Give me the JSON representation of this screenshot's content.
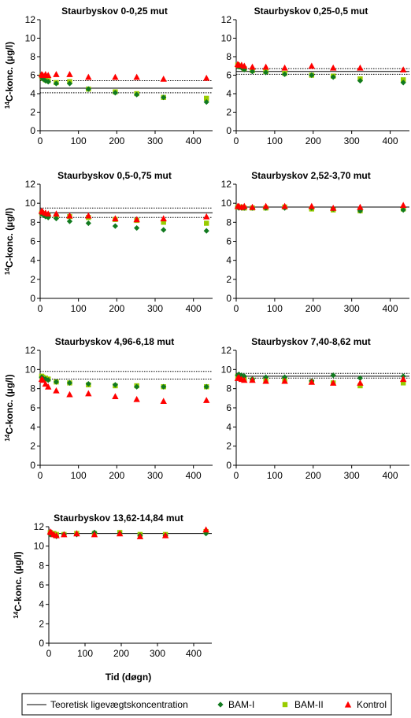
{
  "figure": {
    "x_axis_label": "Tid (døgn)",
    "y_axis_label_sup": "14",
    "y_axis_label": "C-konc. (µg/l)"
  },
  "legend": {
    "items": [
      {
        "label": "Teoretisk ligevægtskoncentration",
        "marker": "line",
        "color": "#000000"
      },
      {
        "label": "BAM-I",
        "marker": "diamond",
        "color": "#117a1f"
      },
      {
        "label": "BAM-II",
        "marker": "square",
        "color": "#99cc00"
      },
      {
        "label": "Kontrol",
        "marker": "triangle",
        "color": "#ff0000"
      }
    ]
  },
  "chart_data": [
    {
      "type": "scatter",
      "title": "Staurbyskov 0-0,25 mut",
      "xlim": [
        0,
        450
      ],
      "ylim": [
        0,
        12
      ],
      "xticks": [
        0,
        100,
        200,
        300,
        400
      ],
      "yticks": [
        0,
        2,
        4,
        6,
        8,
        10,
        12
      ],
      "ref_solid": [
        4.6
      ],
      "ref_dotted": [
        5.4,
        4.1
      ],
      "series": [
        {
          "name": "BAM-I",
          "x": [
            4,
            7,
            14,
            21,
            42,
            77,
            126,
            196,
            252,
            322,
            434
          ],
          "y": [
            5.8,
            5.6,
            5.4,
            5.3,
            5.1,
            5.1,
            4.5,
            4.1,
            3.9,
            3.6,
            3.1
          ]
        },
        {
          "name": "BAM-II",
          "x": [
            4,
            7,
            14,
            21,
            42,
            77,
            126,
            196,
            252,
            322,
            434
          ],
          "y": [
            5.9,
            5.7,
            5.5,
            5.4,
            5.2,
            5.3,
            4.5,
            4.2,
            4.0,
            3.6,
            3.5
          ]
        },
        {
          "name": "Kontrol",
          "x": [
            4,
            7,
            14,
            21,
            42,
            77,
            126,
            196,
            252,
            322,
            434
          ],
          "y": [
            6.1,
            6.0,
            6.1,
            6.0,
            6.1,
            6.1,
            5.8,
            5.8,
            5.8,
            5.6,
            5.7
          ]
        }
      ]
    },
    {
      "type": "scatter",
      "title": "Staurbyskov 0,25-0,5 mut",
      "xlim": [
        0,
        450
      ],
      "ylim": [
        0,
        12
      ],
      "xticks": [
        0,
        100,
        200,
        300,
        400
      ],
      "yticks": [
        0,
        2,
        4,
        6,
        8,
        10,
        12
      ],
      "ref_solid": [
        6.4
      ],
      "ref_dotted": [
        6.7,
        6.1
      ],
      "series": [
        {
          "name": "BAM-I",
          "x": [
            4,
            7,
            14,
            21,
            42,
            77,
            126,
            196,
            252,
            322,
            434
          ],
          "y": [
            7.0,
            6.9,
            6.8,
            6.6,
            6.4,
            6.3,
            6.1,
            6.0,
            5.8,
            5.4,
            5.2
          ]
        },
        {
          "name": "BAM-II",
          "x": [
            4,
            7,
            14,
            21,
            42,
            77,
            126,
            196,
            252,
            322,
            434
          ],
          "y": [
            7.1,
            7.0,
            6.9,
            6.7,
            6.5,
            6.4,
            6.2,
            6.0,
            5.9,
            5.6,
            5.5
          ]
        },
        {
          "name": "Kontrol",
          "x": [
            4,
            7,
            14,
            21,
            42,
            77,
            126,
            196,
            252,
            322,
            434
          ],
          "y": [
            7.2,
            7.1,
            7.1,
            7.0,
            6.9,
            6.9,
            6.8,
            7.0,
            6.8,
            6.8,
            6.6
          ]
        }
      ]
    },
    {
      "type": "scatter",
      "title": "Staurbyskov 0,5-0,75 mut",
      "xlim": [
        0,
        450
      ],
      "ylim": [
        0,
        12
      ],
      "xticks": [
        0,
        100,
        200,
        300,
        400
      ],
      "yticks": [
        0,
        2,
        4,
        6,
        8,
        10,
        12
      ],
      "ref_solid": [
        9.0
      ],
      "ref_dotted": [
        9.5,
        8.5
      ],
      "series": [
        {
          "name": "BAM-I",
          "x": [
            4,
            7,
            14,
            21,
            42,
            77,
            126,
            196,
            252,
            322,
            434
          ],
          "y": [
            8.9,
            8.8,
            8.6,
            8.5,
            8.4,
            8.1,
            7.9,
            7.6,
            7.4,
            7.2,
            7.1
          ]
        },
        {
          "name": "BAM-II",
          "x": [
            4,
            7,
            14,
            21,
            42,
            77,
            126,
            196,
            252,
            322,
            434
          ],
          "y": [
            9.0,
            8.9,
            8.8,
            8.7,
            8.6,
            8.6,
            8.5,
            8.3,
            8.2,
            8.0,
            7.9
          ]
        },
        {
          "name": "Kontrol",
          "x": [
            4,
            7,
            14,
            21,
            42,
            77,
            126,
            196,
            252,
            322,
            434
          ],
          "y": [
            9.2,
            9.1,
            9.0,
            8.9,
            8.9,
            8.7,
            8.7,
            8.4,
            8.3,
            8.4,
            8.6
          ]
        }
      ]
    },
    {
      "type": "scatter",
      "title": "Staurbyskov 2,52-3,70 mut",
      "xlim": [
        0,
        450
      ],
      "ylim": [
        0,
        12
      ],
      "xticks": [
        0,
        100,
        200,
        300,
        400
      ],
      "yticks": [
        0,
        2,
        4,
        6,
        8,
        10,
        12
      ],
      "ref_solid": [
        9.6
      ],
      "ref_dotted": [],
      "series": [
        {
          "name": "BAM-I",
          "x": [
            4,
            7,
            14,
            21,
            42,
            77,
            126,
            196,
            252,
            322,
            434
          ],
          "y": [
            9.6,
            9.5,
            9.5,
            9.5,
            9.5,
            9.5,
            9.5,
            9.5,
            9.4,
            9.2,
            9.3
          ]
        },
        {
          "name": "BAM-II",
          "x": [
            4,
            7,
            14,
            21,
            42,
            77,
            126,
            196,
            252,
            322,
            434
          ],
          "y": [
            9.6,
            9.6,
            9.6,
            9.5,
            9.5,
            9.5,
            9.6,
            9.4,
            9.3,
            9.2,
            9.4
          ]
        },
        {
          "name": "Kontrol",
          "x": [
            4,
            7,
            14,
            21,
            42,
            77,
            126,
            196,
            252,
            322,
            434
          ],
          "y": [
            9.7,
            9.7,
            9.6,
            9.7,
            9.6,
            9.7,
            9.7,
            9.7,
            9.5,
            9.6,
            9.8
          ]
        }
      ]
    },
    {
      "type": "scatter",
      "title": "Staurbyskov 4,96-6,18 mut",
      "xlim": [
        0,
        450
      ],
      "ylim": [
        0,
        12
      ],
      "xticks": [
        0,
        100,
        200,
        300,
        400
      ],
      "yticks": [
        0,
        2,
        4,
        6,
        8,
        10,
        12
      ],
      "ref_solid": [],
      "ref_dotted": [
        9.8,
        9.0
      ],
      "series": [
        {
          "name": "BAM-I",
          "x": [
            4,
            7,
            14,
            21,
            42,
            77,
            126,
            196,
            252,
            322,
            434
          ],
          "y": [
            9.2,
            9.1,
            9.0,
            8.9,
            8.7,
            8.6,
            8.5,
            8.4,
            8.2,
            8.2,
            8.2
          ]
        },
        {
          "name": "BAM-II",
          "x": [
            4,
            7,
            14,
            21,
            42,
            77,
            126,
            196,
            252,
            322,
            434
          ],
          "y": [
            9.3,
            9.2,
            9.1,
            9.0,
            8.7,
            8.6,
            8.4,
            8.3,
            8.3,
            8.2,
            8.2
          ]
        },
        {
          "name": "Kontrol",
          "x": [
            4,
            7,
            14,
            21,
            42,
            77,
            126,
            196,
            252,
            322,
            434
          ],
          "y": [
            9.0,
            8.9,
            8.5,
            8.2,
            7.8,
            7.4,
            7.5,
            7.2,
            6.9,
            6.7,
            6.8
          ]
        }
      ]
    },
    {
      "type": "scatter",
      "title": "Staurbyskov 7,40-8,62 mut",
      "xlim": [
        0,
        450
      ],
      "ylim": [
        0,
        12
      ],
      "xticks": [
        0,
        100,
        200,
        300,
        400
      ],
      "yticks": [
        0,
        2,
        4,
        6,
        8,
        10,
        12
      ],
      "ref_solid": [
        9.3
      ],
      "ref_dotted": [
        9.6,
        9.1
      ],
      "series": [
        {
          "name": "BAM-I",
          "x": [
            4,
            7,
            14,
            21,
            42,
            77,
            126,
            196,
            252,
            322,
            434
          ],
          "y": [
            9.4,
            9.5,
            9.4,
            9.3,
            9.0,
            9.2,
            9.2,
            8.8,
            9.4,
            9.1,
            9.3
          ]
        },
        {
          "name": "BAM-II",
          "x": [
            4,
            7,
            14,
            21,
            42,
            77,
            126,
            196,
            252,
            322,
            434
          ],
          "y": [
            9.3,
            9.3,
            9.2,
            9.0,
            8.9,
            8.9,
            8.9,
            8.7,
            8.6,
            8.3,
            8.6
          ]
        },
        {
          "name": "Kontrol",
          "x": [
            4,
            7,
            14,
            21,
            42,
            77,
            126,
            196,
            252,
            322,
            434
          ],
          "y": [
            9.1,
            9.2,
            9.0,
            8.9,
            8.9,
            8.8,
            8.8,
            8.7,
            8.6,
            8.6,
            9.0
          ]
        }
      ]
    },
    {
      "type": "scatter",
      "title": "Staurbyskov 13,62-14,84 mut",
      "xlim": [
        0,
        450
      ],
      "ylim": [
        0,
        12
      ],
      "xticks": [
        0,
        100,
        200,
        300,
        400
      ],
      "yticks": [
        0,
        2,
        4,
        6,
        8,
        10,
        12
      ],
      "ref_solid": [
        11.3
      ],
      "ref_dotted": [],
      "series": [
        {
          "name": "BAM-I",
          "x": [
            4,
            7,
            14,
            21,
            42,
            77,
            126,
            196,
            252,
            322,
            434
          ],
          "y": [
            11.2,
            11.3,
            11.1,
            11.0,
            11.2,
            11.2,
            11.4,
            11.3,
            11.1,
            11.1,
            11.3
          ]
        },
        {
          "name": "BAM-II",
          "x": [
            4,
            7,
            14,
            21,
            42,
            77,
            126,
            196,
            252,
            322,
            434
          ],
          "y": [
            11.4,
            11.3,
            11.3,
            11.2,
            11.2,
            11.3,
            11.3,
            11.4,
            11.2,
            11.2,
            11.5
          ]
        },
        {
          "name": "Kontrol",
          "x": [
            4,
            7,
            14,
            21,
            42,
            77,
            126,
            196,
            252,
            322,
            434
          ],
          "y": [
            11.5,
            11.4,
            11.2,
            11.1,
            11.2,
            11.3,
            11.2,
            11.3,
            11.0,
            11.1,
            11.7
          ]
        }
      ]
    }
  ]
}
